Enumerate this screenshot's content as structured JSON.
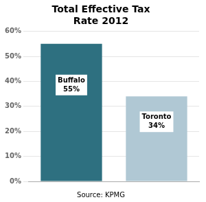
{
  "chart_data": {
    "type": "bar",
    "title": "Total Effective Tax\nRate 2012",
    "categories": [
      "Buffalo",
      "Toronto"
    ],
    "values": [
      55,
      34
    ],
    "value_labels": [
      "55%",
      "34%"
    ],
    "data_labels": true,
    "colors": [
      "#2e7080",
      "#b0c8d4"
    ],
    "ylim": [
      0,
      60
    ],
    "yticks": [
      {
        "value": 0,
        "label": "0%"
      },
      {
        "value": 10,
        "label": "10%"
      },
      {
        "value": 20,
        "label": "20%"
      },
      {
        "value": 30,
        "label": "30%"
      },
      {
        "value": 40,
        "label": "40%"
      },
      {
        "value": 50,
        "label": "50%"
      },
      {
        "value": 60,
        "label": "60%"
      }
    ],
    "annotations": [
      "Source: KPMG"
    ],
    "grid": true,
    "tick_labels": "y"
  }
}
